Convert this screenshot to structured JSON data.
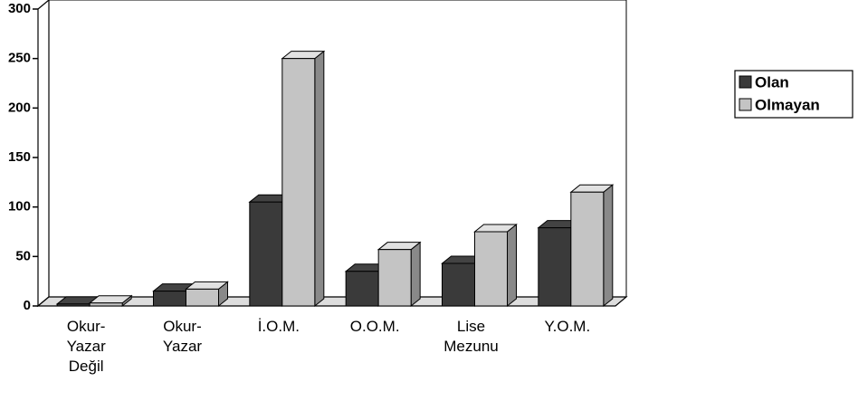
{
  "chart_data": {
    "type": "bar3d",
    "categories": [
      "Okur-Yazar Değil",
      "Okur-Yazar",
      "İ.O.M.",
      "O.O.M.",
      "Lise Mezunu",
      "Y.O.M."
    ],
    "series": [
      {
        "name": "Olan",
        "color": "#3a3a3a",
        "values": [
          2,
          15,
          105,
          35,
          43,
          79
        ]
      },
      {
        "name": "Olmayan",
        "color": "#c4c4c4",
        "values": [
          3,
          17,
          250,
          57,
          75,
          115
        ]
      }
    ],
    "ylim": [
      0,
      300
    ],
    "yticks": [
      0,
      50,
      100,
      150,
      200,
      250,
      300
    ],
    "legend": "right"
  }
}
